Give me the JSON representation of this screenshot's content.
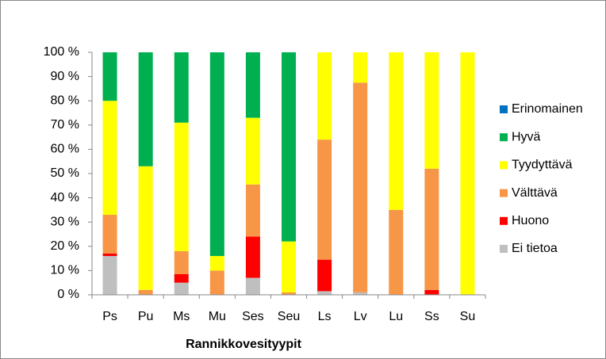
{
  "chart_data": {
    "type": "stacked_bar",
    "x_label": "Rannikkovesityypit",
    "categories": [
      "Ps",
      "Pu",
      "Ms",
      "Mu",
      "Ses",
      "Seu",
      "Ls",
      "Lv",
      "Lu",
      "Ss",
      "Su"
    ],
    "series": [
      {
        "name": "Ei tietoa",
        "color": "#bfbfbf",
        "values": [
          16,
          0,
          5,
          0,
          7,
          0,
          1.5,
          1,
          0,
          0,
          0
        ]
      },
      {
        "name": "Huono",
        "color": "#ff0000",
        "values": [
          1,
          0,
          3.5,
          0,
          17,
          0,
          13,
          0,
          0,
          2,
          0
        ]
      },
      {
        "name": "Välttävä",
        "color": "#f79646",
        "values": [
          16,
          2,
          9.5,
          10,
          21.5,
          1,
          49.5,
          86.5,
          35,
          50,
          0
        ]
      },
      {
        "name": "Tyydyttävä",
        "color": "#ffff00",
        "values": [
          47,
          51,
          53,
          6,
          27.5,
          21,
          36,
          12.5,
          65,
          48,
          100
        ]
      },
      {
        "name": "Hyvä",
        "color": "#00b050",
        "values": [
          20,
          47,
          29,
          84,
          27,
          78,
          0,
          0,
          0,
          0,
          0
        ]
      },
      {
        "name": "Erinomainen",
        "color": "#0070c0",
        "values": [
          0,
          0,
          0,
          0,
          0,
          0,
          0,
          0,
          0,
          0,
          0
        ]
      }
    ],
    "ylim": [
      0,
      100
    ],
    "yticks": [
      {
        "value": 0,
        "label": "0 %"
      },
      {
        "value": 10,
        "label": "10 %"
      },
      {
        "value": 20,
        "label": "20 %"
      },
      {
        "value": 30,
        "label": "30 %"
      },
      {
        "value": 40,
        "label": "40 %"
      },
      {
        "value": 50,
        "label": "50 %"
      },
      {
        "value": 60,
        "label": "60 %"
      },
      {
        "value": 70,
        "label": "70 %"
      },
      {
        "value": 80,
        "label": "80 %"
      },
      {
        "value": 90,
        "label": "90 %"
      },
      {
        "value": 100,
        "label": "100 %"
      }
    ],
    "grid": false
  }
}
